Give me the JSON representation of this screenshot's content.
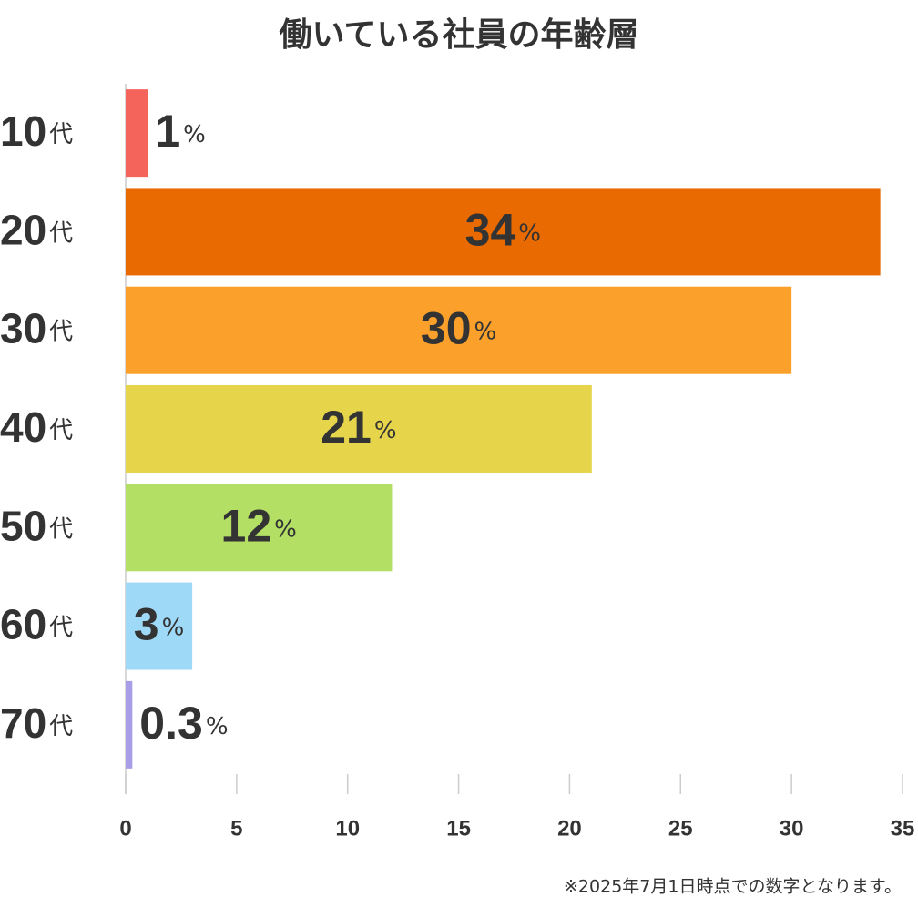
{
  "chart_data": {
    "type": "bar",
    "orientation": "horizontal",
    "title": "働いている社員の年齢層",
    "categories": [
      "10代",
      "20代",
      "30代",
      "40代",
      "50代",
      "60代",
      "70代"
    ],
    "values": [
      1,
      34,
      30,
      21,
      12,
      3,
      0.3
    ],
    "value_labels": [
      "1%",
      "34%",
      "30%",
      "21%",
      "12%",
      "3%",
      "0.3%"
    ],
    "colors": [
      "#f4645a",
      "#e96a00",
      "#fba02a",
      "#e6d44b",
      "#b3df64",
      "#9fd9f8",
      "#a89ee8"
    ],
    "xlim": [
      0,
      35
    ],
    "xticks": [
      0,
      5,
      10,
      15,
      20,
      25,
      30,
      35
    ],
    "note": "※2025年7月1日時点での数字となります。"
  }
}
